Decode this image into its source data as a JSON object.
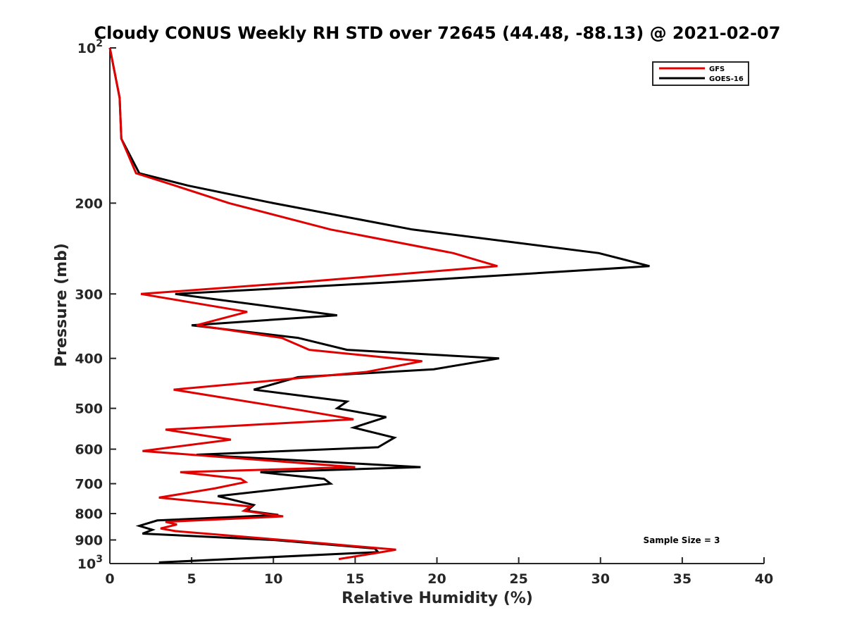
{
  "chart_data": {
    "type": "line",
    "title": "Cloudy CONUS Weekly RH STD over 72645 (44.48, -88.13) @ 2021-02-07",
    "xlabel": "Relative Humidity (%)",
    "ylabel": "Pressure (mb)",
    "xlim": [
      0,
      40
    ],
    "ylim": [
      100,
      1000
    ],
    "y_scale": "log",
    "y_reversed": true,
    "x_ticks": [
      "0",
      "5",
      "10",
      "15",
      "20",
      "25",
      "30",
      "35",
      "40"
    ],
    "y_ticks": [
      {
        "value": 100,
        "base": "10",
        "exp": "2"
      },
      {
        "value": 200,
        "label": "200"
      },
      {
        "value": 300,
        "label": "300"
      },
      {
        "value": 400,
        "label": "400"
      },
      {
        "value": 500,
        "label": "500"
      },
      {
        "value": 600,
        "label": "600"
      },
      {
        "value": 700,
        "label": "700"
      },
      {
        "value": 800,
        "label": "800"
      },
      {
        "value": 900,
        "label": "900"
      },
      {
        "value": 1000,
        "base": "10",
        "exp": "3"
      }
    ],
    "legend_position": "top-right",
    "annotation": "Sample Size = 3",
    "series": [
      {
        "name": "GFS",
        "color": "#e00000",
        "points": [
          [
            0.0,
            100
          ],
          [
            0.6,
            125
          ],
          [
            0.7,
            150
          ],
          [
            1.6,
            175
          ],
          [
            4.0,
            185
          ],
          [
            7.3,
            200
          ],
          [
            13.5,
            225
          ],
          [
            21.0,
            250
          ],
          [
            23.7,
            265
          ],
          [
            11.5,
            285
          ],
          [
            1.9,
            300
          ],
          [
            8.4,
            325
          ],
          [
            5.3,
            345
          ],
          [
            10.5,
            365
          ],
          [
            12.2,
            385
          ],
          [
            19.1,
            405
          ],
          [
            15.7,
            425
          ],
          [
            3.9,
            460
          ],
          [
            11.8,
            505
          ],
          [
            14.9,
            525
          ],
          [
            3.4,
            550
          ],
          [
            7.4,
            575
          ],
          [
            2.0,
            605
          ],
          [
            15.0,
            650
          ],
          [
            4.3,
            665
          ],
          [
            8.0,
            685
          ],
          [
            8.3,
            695
          ],
          [
            6.4,
            715
          ],
          [
            3.0,
            745
          ],
          [
            8.6,
            775
          ],
          [
            8.2,
            790
          ],
          [
            10.6,
            810
          ],
          [
            3.4,
            830
          ],
          [
            4.1,
            840
          ],
          [
            3.1,
            855
          ],
          [
            4.0,
            865
          ],
          [
            11.5,
            905
          ],
          [
            17.5,
            940
          ],
          [
            16.2,
            955
          ],
          [
            14.0,
            980
          ]
        ]
      },
      {
        "name": "GOES-16",
        "color": "#000000",
        "points": [
          [
            0.0,
            100
          ],
          [
            0.6,
            125
          ],
          [
            0.7,
            150
          ],
          [
            1.8,
            175
          ],
          [
            4.8,
            185
          ],
          [
            10.0,
            200
          ],
          [
            18.5,
            225
          ],
          [
            29.9,
            250
          ],
          [
            33.0,
            265
          ],
          [
            17.0,
            285
          ],
          [
            4.0,
            300
          ],
          [
            13.9,
            330
          ],
          [
            5.0,
            345
          ],
          [
            11.5,
            365
          ],
          [
            14.5,
            385
          ],
          [
            23.8,
            400
          ],
          [
            19.8,
            420
          ],
          [
            11.5,
            435
          ],
          [
            8.8,
            460
          ],
          [
            14.5,
            485
          ],
          [
            13.9,
            500
          ],
          [
            16.9,
            520
          ],
          [
            14.9,
            545
          ],
          [
            17.4,
            570
          ],
          [
            16.4,
            595
          ],
          [
            5.3,
            615
          ],
          [
            19.0,
            650
          ],
          [
            9.2,
            665
          ],
          [
            13.1,
            685
          ],
          [
            13.5,
            700
          ],
          [
            10.8,
            715
          ],
          [
            6.6,
            740
          ],
          [
            8.8,
            770
          ],
          [
            8.4,
            790
          ],
          [
            10.3,
            805
          ],
          [
            2.9,
            825
          ],
          [
            1.8,
            845
          ],
          [
            2.6,
            860
          ],
          [
            2.0,
            875
          ],
          [
            10.0,
            900
          ],
          [
            16.2,
            935
          ],
          [
            16.4,
            950
          ],
          [
            3.0,
            995
          ]
        ]
      }
    ]
  }
}
